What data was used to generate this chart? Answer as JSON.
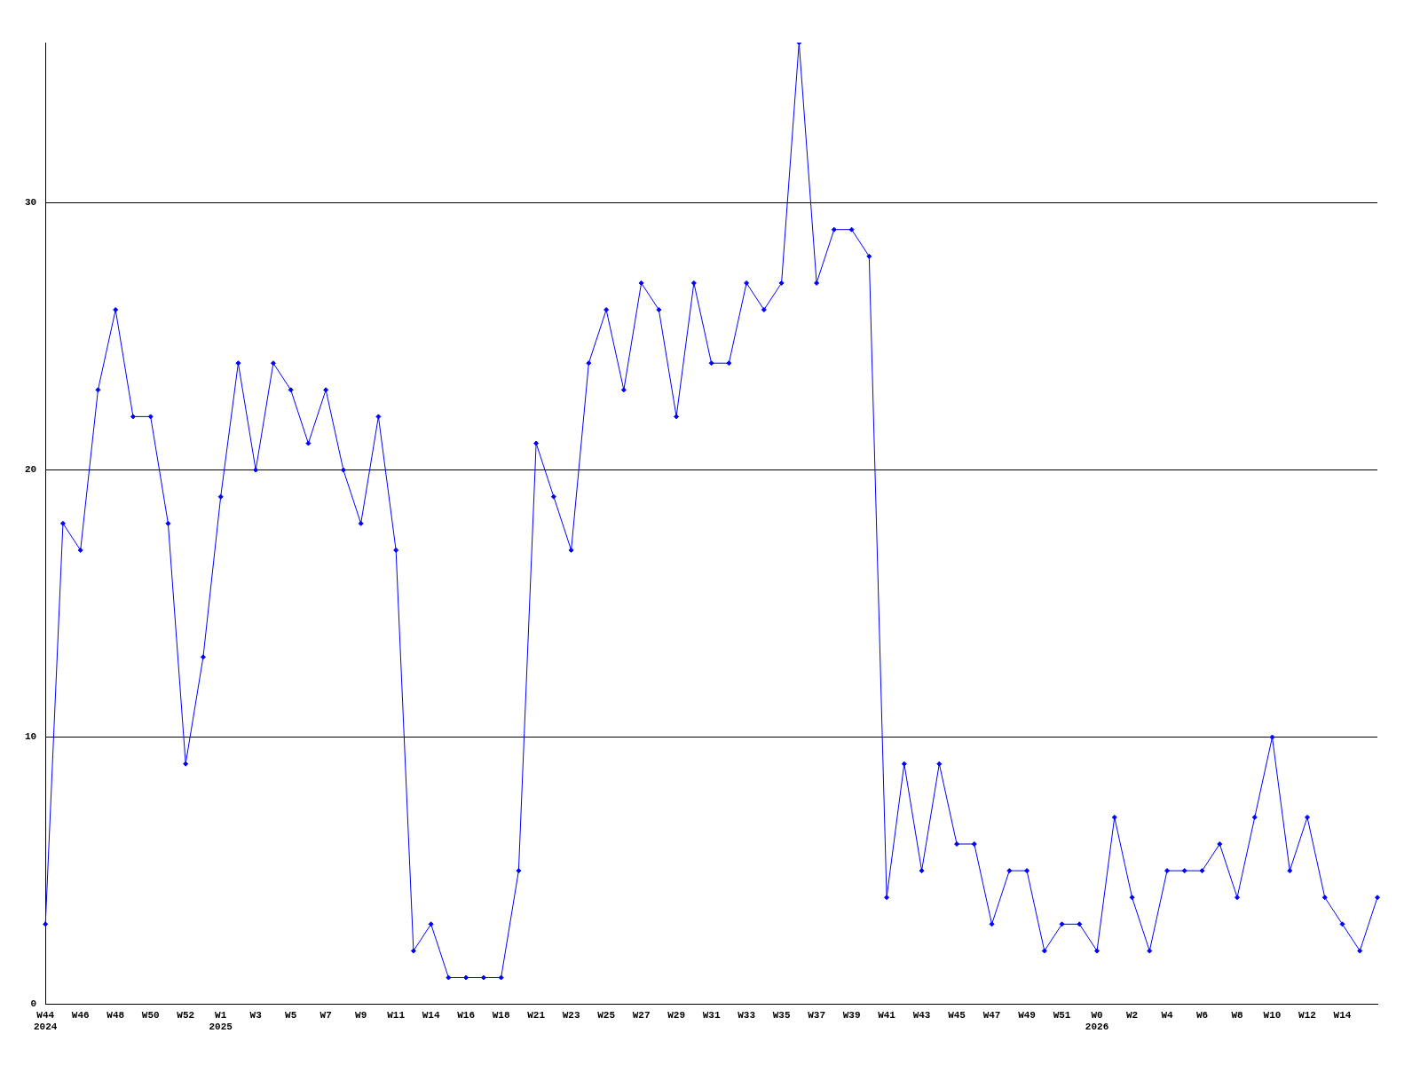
{
  "chart_data": {
    "type": "line",
    "categories": [
      "W44\n2024",
      null,
      "W46",
      null,
      "W48",
      null,
      "W50",
      null,
      "W52",
      null,
      "W1\n2025",
      null,
      "W3",
      null,
      "W5",
      null,
      "W7",
      null,
      "W9",
      null,
      "W11",
      null,
      "W14",
      null,
      "W16",
      null,
      "W18",
      null,
      "W21",
      null,
      "W23",
      null,
      "W25",
      null,
      "W27",
      null,
      "W29",
      null,
      "W31",
      null,
      "W33",
      null,
      "W35",
      null,
      "W37",
      null,
      "W39",
      null,
      "W41",
      null,
      "W43",
      null,
      "W45",
      null,
      "W47",
      null,
      "W49",
      null,
      "W51",
      null,
      "W0\n2026",
      null,
      "W2",
      null,
      "W4",
      null,
      "W6",
      null,
      "W8",
      null,
      "W10",
      null,
      "W12",
      null,
      "W14",
      null,
      null
    ],
    "series": [
      {
        "color": "#0000ff",
        "values": [
          3,
          18,
          17,
          23,
          26,
          22,
          22,
          18,
          9,
          13,
          19,
          24,
          20,
          24,
          23,
          21,
          23,
          20,
          18,
          22,
          17,
          2,
          3,
          1,
          1,
          1,
          1,
          5,
          21,
          19,
          17,
          24,
          26,
          23,
          27,
          26,
          22,
          27,
          24,
          24,
          27,
          26,
          27,
          36,
          27,
          29,
          29,
          28,
          4,
          9,
          5,
          9,
          6,
          6,
          3,
          5,
          5,
          2,
          3,
          3,
          2,
          7,
          4,
          2,
          5,
          5,
          5,
          6,
          4,
          7,
          10,
          5,
          7,
          4,
          3,
          2,
          4
        ]
      }
    ],
    "ylim": [
      0,
      36
    ],
    "yticks": [
      0,
      10,
      20,
      30
    ],
    "grid": "y",
    "legend": false,
    "marker": "diamond",
    "line_style": "solid"
  }
}
